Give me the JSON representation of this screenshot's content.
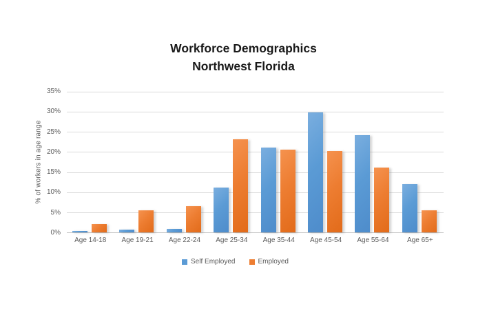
{
  "chart_data": {
    "type": "bar",
    "title": "Workforce Demographics",
    "subtitle": "Northwest Florida",
    "categories": [
      "Age 14-18",
      "Age 19-21",
      "Age 22-24",
      "Age 25-34",
      "Age 35-44",
      "Age 45-54",
      "Age 55-64",
      "Age 65+"
    ],
    "series": [
      {
        "name": "Self Employed",
        "color": "#5B9BD5",
        "values": [
          0.4,
          0.7,
          0.9,
          11.1,
          21.0,
          29.7,
          24.0,
          12.0
        ]
      },
      {
        "name": "Employed",
        "color": "#ED7D31",
        "values": [
          2.1,
          5.5,
          6.5,
          23.0,
          20.5,
          20.2,
          16.0,
          5.4
        ]
      }
    ],
    "xlabel": "",
    "ylabel": "% of workers in age range",
    "ylim": [
      0,
      35
    ],
    "ytick_step": 5,
    "ytick_labels": [
      "0%",
      "5%",
      "10%",
      "15%",
      "20%",
      "25%",
      "30%",
      "35%"
    ],
    "grid": true,
    "legend_position": "bottom"
  },
  "colors": {
    "background": "#FFFFFF",
    "gridline": "#D9D9D9",
    "axis_line": "#BFBFBF",
    "axis_text": "#595959",
    "title_text": "#1A1A1A",
    "series_blue": "#5B9BD5",
    "series_orange": "#ED7D31"
  }
}
